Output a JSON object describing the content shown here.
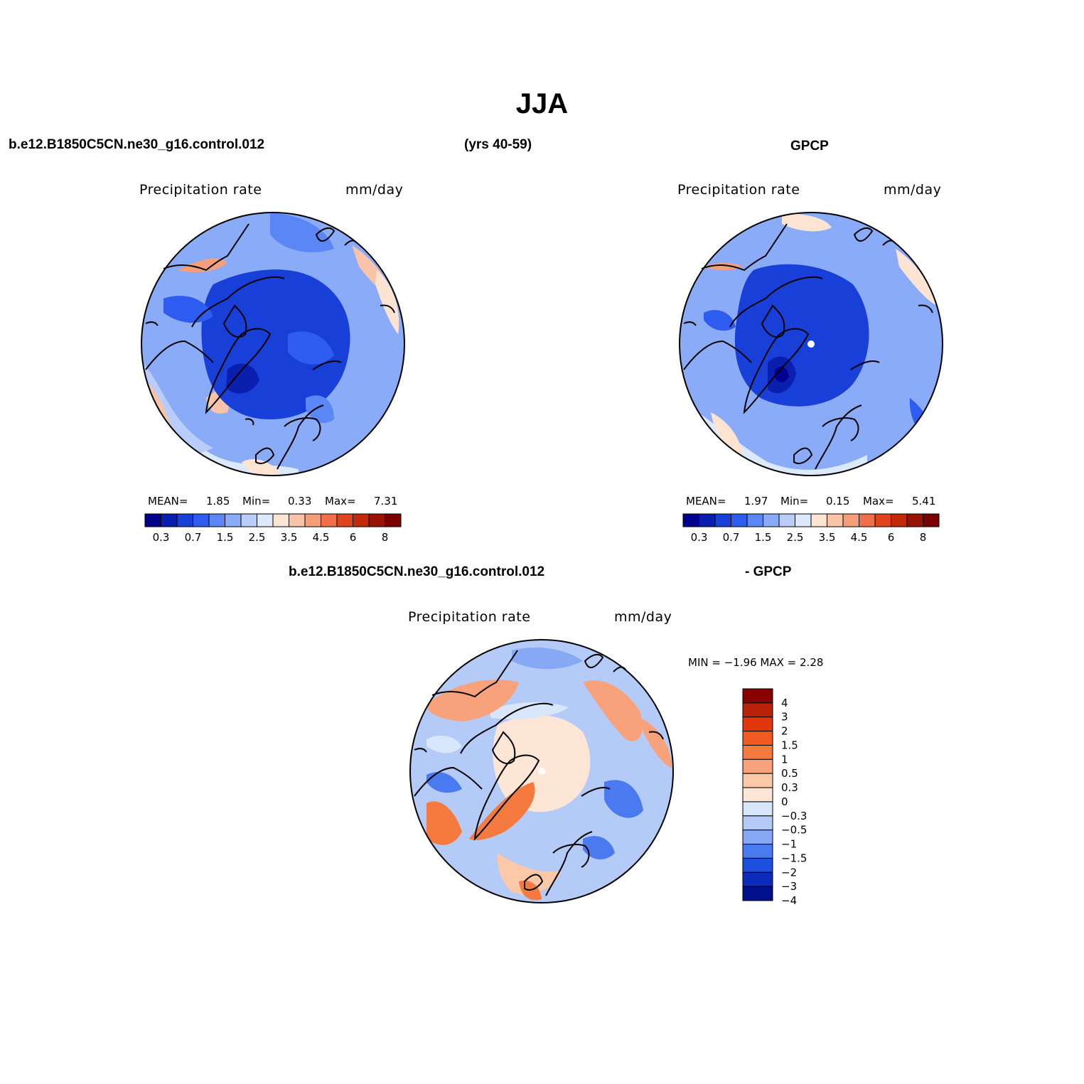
{
  "title": "JJA",
  "header": {
    "case": "b.e12.B1850C5CN.ne30_g16.control.012",
    "years": "(yrs 40-59)",
    "obs": "GPCP"
  },
  "diff_header": {
    "case": "b.e12.B1850C5CN.ne30_g16.control.012",
    "obs": "- GPCP"
  },
  "panels": {
    "model": {
      "field": "Precipitation  rate",
      "units": "mm/day",
      "mean_label": "MEAN=",
      "mean": "1.85",
      "min_label": "Min=",
      "min": "0.33",
      "max_label": "Max=",
      "max": "7.31"
    },
    "obs": {
      "field": "Precipitation  rate",
      "units": "mm/day",
      "mean_label": "MEAN=",
      "mean": "1.97",
      "min_label": "Min=",
      "min": "0.15",
      "max_label": "Max=",
      "max": "5.41"
    },
    "diff": {
      "field": "Precipitation  rate",
      "units": "mm/day",
      "minmax": "MIN =   −1.96  MAX =     2.28"
    }
  },
  "colorbar_abs": {
    "labels": [
      "0.3",
      "0.7",
      "1.5",
      "2.5",
      "3.5",
      "4.5",
      "6",
      "8"
    ],
    "colors": [
      "#00008f",
      "#0a1fb0",
      "#1840d8",
      "#2e5cf0",
      "#5a86f6",
      "#8aacf8",
      "#b8cdf9",
      "#dce8fc",
      "#fde4d2",
      "#f9c3a8",
      "#f59e7a",
      "#f07048",
      "#e0441c",
      "#c22a0a",
      "#9a1206",
      "#780000"
    ]
  },
  "colorbar_diff": {
    "labels": [
      "4",
      "3",
      "2",
      "1.5",
      "1",
      "0.5",
      "0.3",
      "0",
      "−0.3",
      "−0.5",
      "−1",
      "−1.5",
      "−2",
      "−3",
      "−4"
    ],
    "colors": [
      "#880000",
      "#b82208",
      "#e0380a",
      "#f25a20",
      "#f47a40",
      "#f7a27a",
      "#fbc8a8",
      "#fde6d6",
      "#d8e6fc",
      "#b4cbf8",
      "#86a8f5",
      "#4a7af0",
      "#1e50e0",
      "#0a2cb8",
      "#00108a"
    ]
  },
  "map_fills": {
    "ocean_base": "#8aacf8",
    "obs_base": "#8aacf8",
    "diff_base": "#fde6d6",
    "land": "#000000"
  }
}
